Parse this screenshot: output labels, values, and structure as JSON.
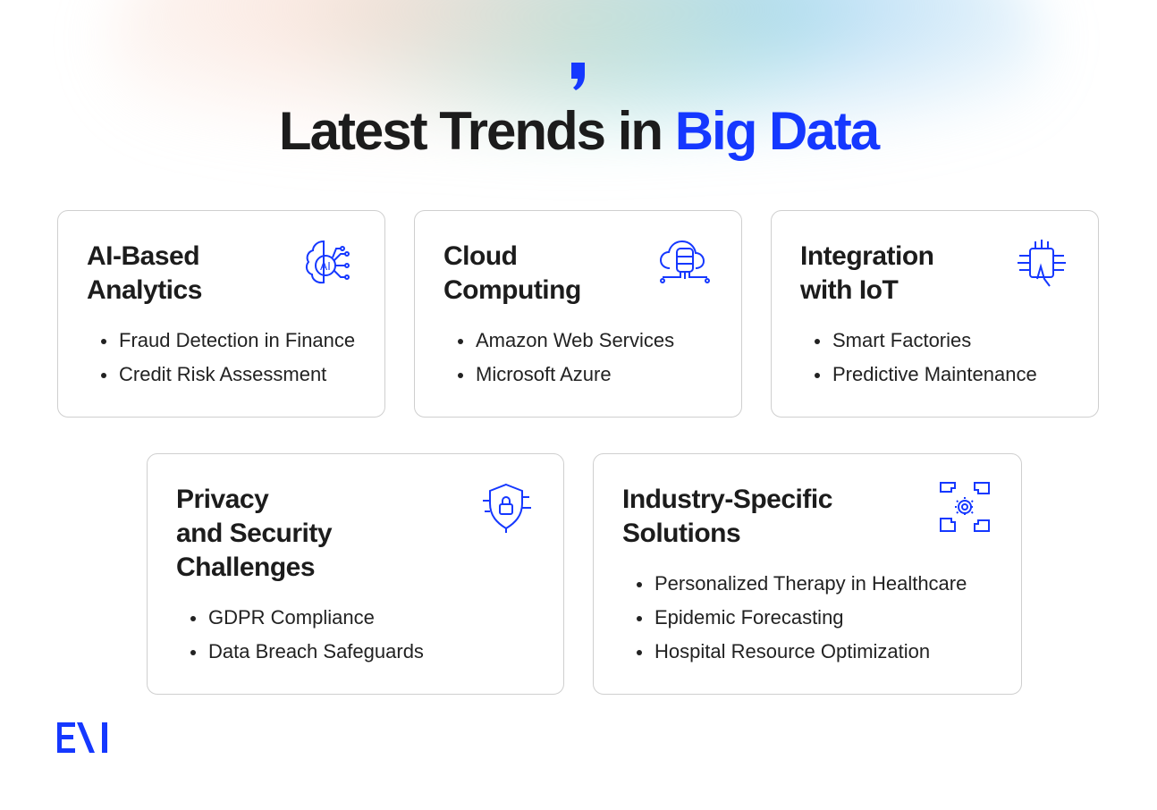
{
  "title": {
    "main": "Latest Trends in ",
    "highlight": "Big Data"
  },
  "accent": "#1538ff",
  "cards": [
    {
      "title_lines": [
        "AI-Based",
        "Analytics"
      ],
      "icon": "ai-brain-icon",
      "items": [
        "Fraud Detection in Finance",
        "Credit Risk Assessment"
      ]
    },
    {
      "title_lines": [
        "Cloud",
        "Computing"
      ],
      "icon": "cloud-database-icon",
      "items": [
        "Amazon Web Services",
        "Microsoft Azure"
      ]
    },
    {
      "title_lines": [
        "Integration",
        "with IoT"
      ],
      "icon": "iot-chip-hand-icon",
      "items": [
        "Smart Factories",
        "Predictive Maintenance"
      ]
    },
    {
      "title_lines": [
        "Privacy",
        "and Security",
        "Challenges"
      ],
      "icon": "shield-lock-icon",
      "items": [
        "GDPR Compliance",
        "Data Breach Safeguards"
      ]
    },
    {
      "title_lines": [
        "Industry-Specific",
        "Solutions"
      ],
      "icon": "puzzle-gear-icon",
      "items": [
        "Personalized Therapy in Healthcare",
        "Epidemic Forecasting",
        "Hospital Resource Optimization"
      ]
    }
  ],
  "logo": "EVI"
}
